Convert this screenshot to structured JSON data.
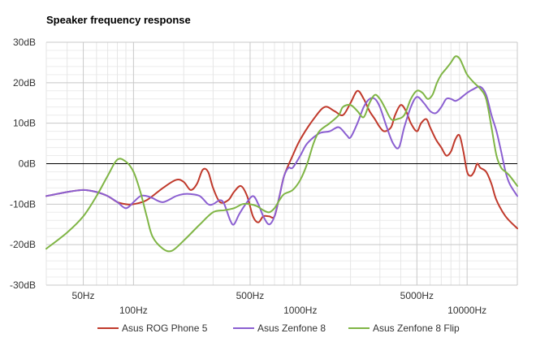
{
  "chart_data": {
    "type": "line",
    "title": "Speaker frequency response",
    "xlabel": "",
    "ylabel": "",
    "x_scale": "log",
    "xlim": [
      30,
      20000
    ],
    "ylim": [
      -30,
      30
    ],
    "grid": true,
    "legend_position": "bottom",
    "y_ticks": [
      {
        "value": 30,
        "label": "30dB"
      },
      {
        "value": 20,
        "label": "20dB"
      },
      {
        "value": 10,
        "label": "10dB"
      },
      {
        "value": 0,
        "label": "0dB"
      },
      {
        "value": -10,
        "label": "-10dB"
      },
      {
        "value": -20,
        "label": "-20dB"
      },
      {
        "value": -30,
        "label": "-30dB"
      }
    ],
    "x_ticks": [
      {
        "value": 50,
        "label": "50Hz",
        "row": 1
      },
      {
        "value": 100,
        "label": "100Hz",
        "row": 2
      },
      {
        "value": 500,
        "label": "500Hz",
        "row": 1
      },
      {
        "value": 1000,
        "label": "1000Hz",
        "row": 2
      },
      {
        "value": 5000,
        "label": "5000Hz",
        "row": 1
      },
      {
        "value": 10000,
        "label": "10000Hz",
        "row": 2
      }
    ],
    "series": [
      {
        "name": "Asus ROG Phone 5",
        "color": "#c0392b",
        "points": [
          [
            30,
            -8
          ],
          [
            40,
            -7
          ],
          [
            50,
            -6.5
          ],
          [
            60,
            -7
          ],
          [
            70,
            -8
          ],
          [
            80,
            -9.5
          ],
          [
            90,
            -10
          ],
          [
            100,
            -10
          ],
          [
            120,
            -9
          ],
          [
            150,
            -6
          ],
          [
            180,
            -4
          ],
          [
            200,
            -4.5
          ],
          [
            220,
            -6.5
          ],
          [
            240,
            -5
          ],
          [
            260,
            -1.5
          ],
          [
            280,
            -2
          ],
          [
            300,
            -6
          ],
          [
            330,
            -9.5
          ],
          [
            370,
            -9
          ],
          [
            400,
            -7
          ],
          [
            440,
            -5.5
          ],
          [
            480,
            -8
          ],
          [
            520,
            -13
          ],
          [
            560,
            -14.5
          ],
          [
            600,
            -13
          ],
          [
            650,
            -13
          ],
          [
            700,
            -13
          ],
          [
            750,
            -8
          ],
          [
            800,
            -3
          ],
          [
            900,
            2
          ],
          [
            1000,
            6
          ],
          [
            1200,
            11
          ],
          [
            1400,
            14
          ],
          [
            1600,
            13
          ],
          [
            1800,
            12
          ],
          [
            2000,
            15
          ],
          [
            2200,
            18
          ],
          [
            2400,
            16
          ],
          [
            2600,
            13
          ],
          [
            2800,
            11
          ],
          [
            3000,
            9
          ],
          [
            3200,
            8
          ],
          [
            3500,
            9
          ],
          [
            3700,
            12
          ],
          [
            4000,
            14.5
          ],
          [
            4300,
            13
          ],
          [
            4600,
            10
          ],
          [
            5000,
            8
          ],
          [
            5300,
            10
          ],
          [
            5700,
            11
          ],
          [
            6000,
            9
          ],
          [
            6500,
            6
          ],
          [
            7000,
            4
          ],
          [
            7500,
            2
          ],
          [
            8000,
            3
          ],
          [
            8500,
            6
          ],
          [
            9000,
            7
          ],
          [
            9500,
            3
          ],
          [
            10000,
            -2
          ],
          [
            10500,
            -3
          ],
          [
            11000,
            -2
          ],
          [
            11500,
            0
          ],
          [
            12000,
            -1
          ],
          [
            13000,
            -2
          ],
          [
            14000,
            -5
          ],
          [
            15000,
            -9
          ],
          [
            17000,
            -13
          ],
          [
            20000,
            -16
          ]
        ]
      },
      {
        "name": "Asus Zenfone 8",
        "color": "#8b5fd1",
        "points": [
          [
            30,
            -8
          ],
          [
            40,
            -7
          ],
          [
            50,
            -6.5
          ],
          [
            60,
            -7
          ],
          [
            70,
            -8
          ],
          [
            80,
            -9.5
          ],
          [
            90,
            -11
          ],
          [
            100,
            -9.5
          ],
          [
            110,
            -8
          ],
          [
            120,
            -8
          ],
          [
            130,
            -8.5
          ],
          [
            150,
            -9.5
          ],
          [
            180,
            -8
          ],
          [
            200,
            -7.5
          ],
          [
            220,
            -7.5
          ],
          [
            250,
            -8
          ],
          [
            280,
            -10
          ],
          [
            300,
            -10
          ],
          [
            330,
            -9
          ],
          [
            350,
            -10
          ],
          [
            380,
            -14
          ],
          [
            400,
            -15
          ],
          [
            430,
            -12.5
          ],
          [
            470,
            -10
          ],
          [
            520,
            -8
          ],
          [
            560,
            -10
          ],
          [
            600,
            -13
          ],
          [
            650,
            -15
          ],
          [
            700,
            -13
          ],
          [
            750,
            -8
          ],
          [
            800,
            -3
          ],
          [
            850,
            -1
          ],
          [
            900,
            -1
          ],
          [
            1000,
            2
          ],
          [
            1100,
            5
          ],
          [
            1300,
            7.5
          ],
          [
            1500,
            8
          ],
          [
            1700,
            9
          ],
          [
            1900,
            7
          ],
          [
            2000,
            6.5
          ],
          [
            2200,
            10
          ],
          [
            2400,
            14
          ],
          [
            2600,
            16
          ],
          [
            2800,
            16
          ],
          [
            3000,
            14
          ],
          [
            3300,
            9
          ],
          [
            3600,
            5
          ],
          [
            3900,
            4
          ],
          [
            4200,
            9
          ],
          [
            4600,
            14
          ],
          [
            5000,
            16.5
          ],
          [
            5500,
            15
          ],
          [
            6000,
            13
          ],
          [
            6500,
            12.5
          ],
          [
            7000,
            14
          ],
          [
            7500,
            16
          ],
          [
            8000,
            16
          ],
          [
            8500,
            15.5
          ],
          [
            9000,
            16
          ],
          [
            10000,
            17.5
          ],
          [
            11000,
            18.5
          ],
          [
            12000,
            19
          ],
          [
            13000,
            17
          ],
          [
            14000,
            12
          ],
          [
            15000,
            8
          ],
          [
            16000,
            3
          ],
          [
            17000,
            -2
          ],
          [
            18000,
            -5
          ],
          [
            20000,
            -8
          ]
        ]
      },
      {
        "name": "Asus Zenfone 8 Flip",
        "color": "#7fb545",
        "points": [
          [
            30,
            -21
          ],
          [
            40,
            -17
          ],
          [
            50,
            -13
          ],
          [
            60,
            -8
          ],
          [
            70,
            -3
          ],
          [
            80,
            1
          ],
          [
            90,
            0.5
          ],
          [
            100,
            -2
          ],
          [
            110,
            -7
          ],
          [
            120,
            -13
          ],
          [
            130,
            -18
          ],
          [
            150,
            -21
          ],
          [
            170,
            -21.5
          ],
          [
            200,
            -19
          ],
          [
            250,
            -15
          ],
          [
            300,
            -12
          ],
          [
            350,
            -11.5
          ],
          [
            400,
            -11
          ],
          [
            450,
            -10
          ],
          [
            500,
            -10
          ],
          [
            550,
            -10.5
          ],
          [
            600,
            -11.5
          ],
          [
            650,
            -12
          ],
          [
            700,
            -11
          ],
          [
            750,
            -9
          ],
          [
            800,
            -7.5
          ],
          [
            900,
            -6.5
          ],
          [
            1000,
            -4
          ],
          [
            1100,
            0
          ],
          [
            1200,
            5
          ],
          [
            1300,
            8
          ],
          [
            1500,
            10
          ],
          [
            1700,
            12
          ],
          [
            1800,
            14
          ],
          [
            2000,
            14.5
          ],
          [
            2200,
            13
          ],
          [
            2400,
            11.5
          ],
          [
            2600,
            15
          ],
          [
            2800,
            17
          ],
          [
            3000,
            16
          ],
          [
            3200,
            14
          ],
          [
            3500,
            11
          ],
          [
            3800,
            11
          ],
          [
            4200,
            12
          ],
          [
            4600,
            16
          ],
          [
            5000,
            18
          ],
          [
            5400,
            17.5
          ],
          [
            5800,
            16
          ],
          [
            6200,
            17
          ],
          [
            6600,
            20
          ],
          [
            7000,
            22
          ],
          [
            7500,
            23.5
          ],
          [
            8000,
            25
          ],
          [
            8500,
            26.5
          ],
          [
            9000,
            26
          ],
          [
            9500,
            24
          ],
          [
            10000,
            22
          ],
          [
            11000,
            20
          ],
          [
            12000,
            18.5
          ],
          [
            13000,
            16
          ],
          [
            14000,
            9
          ],
          [
            15000,
            2
          ],
          [
            16000,
            -1
          ],
          [
            17000,
            -2
          ],
          [
            18000,
            -3
          ],
          [
            20000,
            -5.5
          ]
        ]
      }
    ]
  }
}
